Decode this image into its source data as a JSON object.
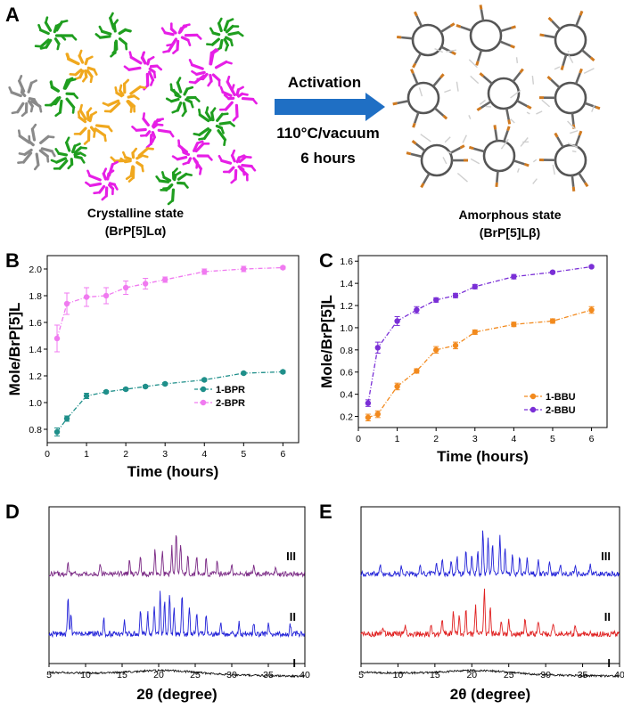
{
  "panels": {
    "A": {
      "letter": "A",
      "left_caption": [
        "Crystalline state",
        "(BrP[5]Lα)"
      ],
      "right_caption": [
        "Amorphous state",
        "(BrP[5]Lβ)"
      ],
      "arrow_label": "Activation",
      "conditions": [
        "110°C/vacuum",
        "6 hours"
      ],
      "colors": {
        "green": "#1f9e1f",
        "magenta": "#e61fe6",
        "orange": "#f0a81e",
        "gray": "#8a8a8a",
        "arrow": "#1f6fc4",
        "bromine": "#d07a20"
      }
    }
  },
  "chart_data": [
    {
      "id": "B",
      "letter": "B",
      "type": "line",
      "xlabel": "Time (hours)",
      "ylabel": "Mole/BrP[5]L",
      "xlim": [
        0,
        6.4
      ],
      "ylim": [
        0.7,
        2.1
      ],
      "xticks": [
        0,
        1,
        2,
        3,
        4,
        5,
        6
      ],
      "yticks": [
        0.8,
        1.0,
        1.2,
        1.4,
        1.6,
        1.8,
        2.0
      ],
      "ytick_labels": [
        "0.8",
        "1.0",
        "1.2",
        "1.4",
        "1.6",
        "1.8",
        "2.0"
      ],
      "legend_position": "center-right",
      "series": [
        {
          "name": "1-BPR",
          "color": "#1f8f8a",
          "x": [
            0.25,
            0.5,
            1,
            1.5,
            2,
            2.5,
            3,
            4,
            5,
            6
          ],
          "values": [
            0.78,
            0.88,
            1.05,
            1.08,
            1.1,
            1.12,
            1.14,
            1.17,
            1.22,
            1.23
          ],
          "err": [
            0.03,
            0.02,
            0.02,
            0.01,
            0.01,
            0.01,
            0.01,
            0.01,
            0.01,
            0.01
          ]
        },
        {
          "name": "2-BPR",
          "color": "#f07af0",
          "x": [
            0.25,
            0.5,
            1,
            1.5,
            2,
            2.5,
            3,
            4,
            5,
            6
          ],
          "values": [
            1.48,
            1.74,
            1.79,
            1.8,
            1.86,
            1.89,
            1.92,
            1.98,
            2.0,
            2.01
          ],
          "err": [
            0.1,
            0.08,
            0.07,
            0.06,
            0.05,
            0.04,
            0.02,
            0.02,
            0.02,
            0.01
          ]
        }
      ]
    },
    {
      "id": "C",
      "letter": "C",
      "type": "line",
      "xlabel": "Time (hours)",
      "ylabel": "Mole/BrP[5]L",
      "xlim": [
        0,
        6.4
      ],
      "ylim": [
        0.1,
        1.65
      ],
      "xticks": [
        0,
        1,
        2,
        3,
        4,
        5,
        6
      ],
      "yticks": [
        0.2,
        0.4,
        0.6,
        0.8,
        1.0,
        1.2,
        1.4,
        1.6
      ],
      "ytick_labels": [
        "0.2",
        "0.4",
        "0.6",
        "0.8",
        "1.0",
        "1.2",
        "1.4",
        "1.6"
      ],
      "legend_position": "bottom-right",
      "series": [
        {
          "name": "1-BBU",
          "color": "#f28a1e",
          "x": [
            0.25,
            0.5,
            1,
            1.5,
            2,
            2.5,
            3,
            4,
            5,
            6
          ],
          "values": [
            0.19,
            0.22,
            0.47,
            0.61,
            0.8,
            0.84,
            0.96,
            1.03,
            1.06,
            1.16
          ],
          "err": [
            0.03,
            0.03,
            0.03,
            0.02,
            0.03,
            0.03,
            0.02,
            0.02,
            0.02,
            0.03
          ]
        },
        {
          "name": "2-BBU",
          "color": "#7a2fd6",
          "x": [
            0.25,
            0.5,
            1,
            1.5,
            2,
            2.5,
            3,
            4,
            5,
            6
          ],
          "values": [
            0.32,
            0.82,
            1.06,
            1.16,
            1.25,
            1.29,
            1.37,
            1.46,
            1.5,
            1.55
          ],
          "err": [
            0.03,
            0.05,
            0.04,
            0.03,
            0.02,
            0.02,
            0.02,
            0.02,
            0.01,
            0.01
          ]
        }
      ]
    },
    {
      "id": "D",
      "letter": "D",
      "type": "line",
      "xlabel": "2θ (degree)",
      "ylabel": "",
      "xlim": [
        5,
        40
      ],
      "xticks": [
        5,
        10,
        15,
        20,
        25,
        30,
        35,
        40
      ],
      "traces": [
        {
          "label": "III",
          "color": "#7b2a85",
          "peaks": [
            [
              7.6,
              0.3
            ],
            [
              12,
              0.25
            ],
            [
              16,
              0.3
            ],
            [
              17.5,
              0.4
            ],
            [
              19.5,
              0.55
            ],
            [
              20.5,
              0.5
            ],
            [
              21.8,
              0.62
            ],
            [
              22.4,
              1.0
            ],
            [
              23,
              0.7
            ],
            [
              24,
              0.45
            ],
            [
              25.2,
              0.4
            ],
            [
              26.5,
              0.35
            ],
            [
              28,
              0.3
            ],
            [
              30,
              0.25
            ],
            [
              33,
              0.22
            ],
            [
              36,
              0.2
            ]
          ]
        },
        {
          "label": "II",
          "color": "#2323d8",
          "peaks": [
            [
              7.6,
              0.8
            ],
            [
              8,
              0.4
            ],
            [
              12.5,
              0.3
            ],
            [
              15.3,
              0.3
            ],
            [
              17.5,
              0.55
            ],
            [
              18.5,
              0.48
            ],
            [
              19.4,
              0.6
            ],
            [
              20.2,
              0.92
            ],
            [
              20.8,
              0.72
            ],
            [
              21.5,
              0.85
            ],
            [
              22.1,
              0.55
            ],
            [
              23.2,
              0.85
            ],
            [
              24.2,
              0.55
            ],
            [
              25.2,
              0.45
            ],
            [
              26.5,
              0.42
            ],
            [
              28.5,
              0.3
            ],
            [
              31,
              0.25
            ],
            [
              33,
              0.22
            ],
            [
              35,
              0.22
            ],
            [
              38,
              0.2
            ]
          ]
        },
        {
          "label": "I",
          "color": "#111111",
          "peaks": []
        }
      ]
    },
    {
      "id": "E",
      "letter": "E",
      "type": "line",
      "xlabel": "2θ (degree)",
      "ylabel": "",
      "xlim": [
        5,
        40
      ],
      "xticks": [
        5,
        10,
        15,
        20,
        25,
        30,
        35,
        40
      ],
      "traces": [
        {
          "label": "III",
          "color": "#2323d8",
          "peaks": [
            [
              7.6,
              0.2
            ],
            [
              10.5,
              0.18
            ],
            [
              13,
              0.22
            ],
            [
              15.2,
              0.3
            ],
            [
              16,
              0.38
            ],
            [
              17.2,
              0.35
            ],
            [
              18,
              0.4
            ],
            [
              19.2,
              0.55
            ],
            [
              20,
              0.45
            ],
            [
              20.8,
              0.55
            ],
            [
              21.5,
              1.0
            ],
            [
              22.2,
              0.8
            ],
            [
              22.8,
              0.7
            ],
            [
              23.8,
              0.85
            ],
            [
              24.5,
              0.55
            ],
            [
              25.5,
              0.45
            ],
            [
              26.5,
              0.4
            ],
            [
              27.5,
              0.35
            ],
            [
              29,
              0.3
            ],
            [
              30.5,
              0.28
            ],
            [
              32,
              0.25
            ],
            [
              34,
              0.22
            ],
            [
              36,
              0.2
            ]
          ]
        },
        {
          "label": "II",
          "color": "#e02020",
          "peaks": [
            [
              8,
              0.15
            ],
            [
              11,
              0.18
            ],
            [
              14.5,
              0.2
            ],
            [
              16,
              0.35
            ],
            [
              17.5,
              0.55
            ],
            [
              18.3,
              0.45
            ],
            [
              19.2,
              0.5
            ],
            [
              20.5,
              0.6
            ],
            [
              21.7,
              1.0
            ],
            [
              22.5,
              0.55
            ],
            [
              24,
              0.3
            ],
            [
              25,
              0.32
            ],
            [
              27.2,
              0.35
            ],
            [
              29,
              0.25
            ],
            [
              31,
              0.2
            ],
            [
              34,
              0.18
            ]
          ]
        },
        {
          "label": "I",
          "color": "#111111",
          "peaks": []
        }
      ]
    }
  ]
}
